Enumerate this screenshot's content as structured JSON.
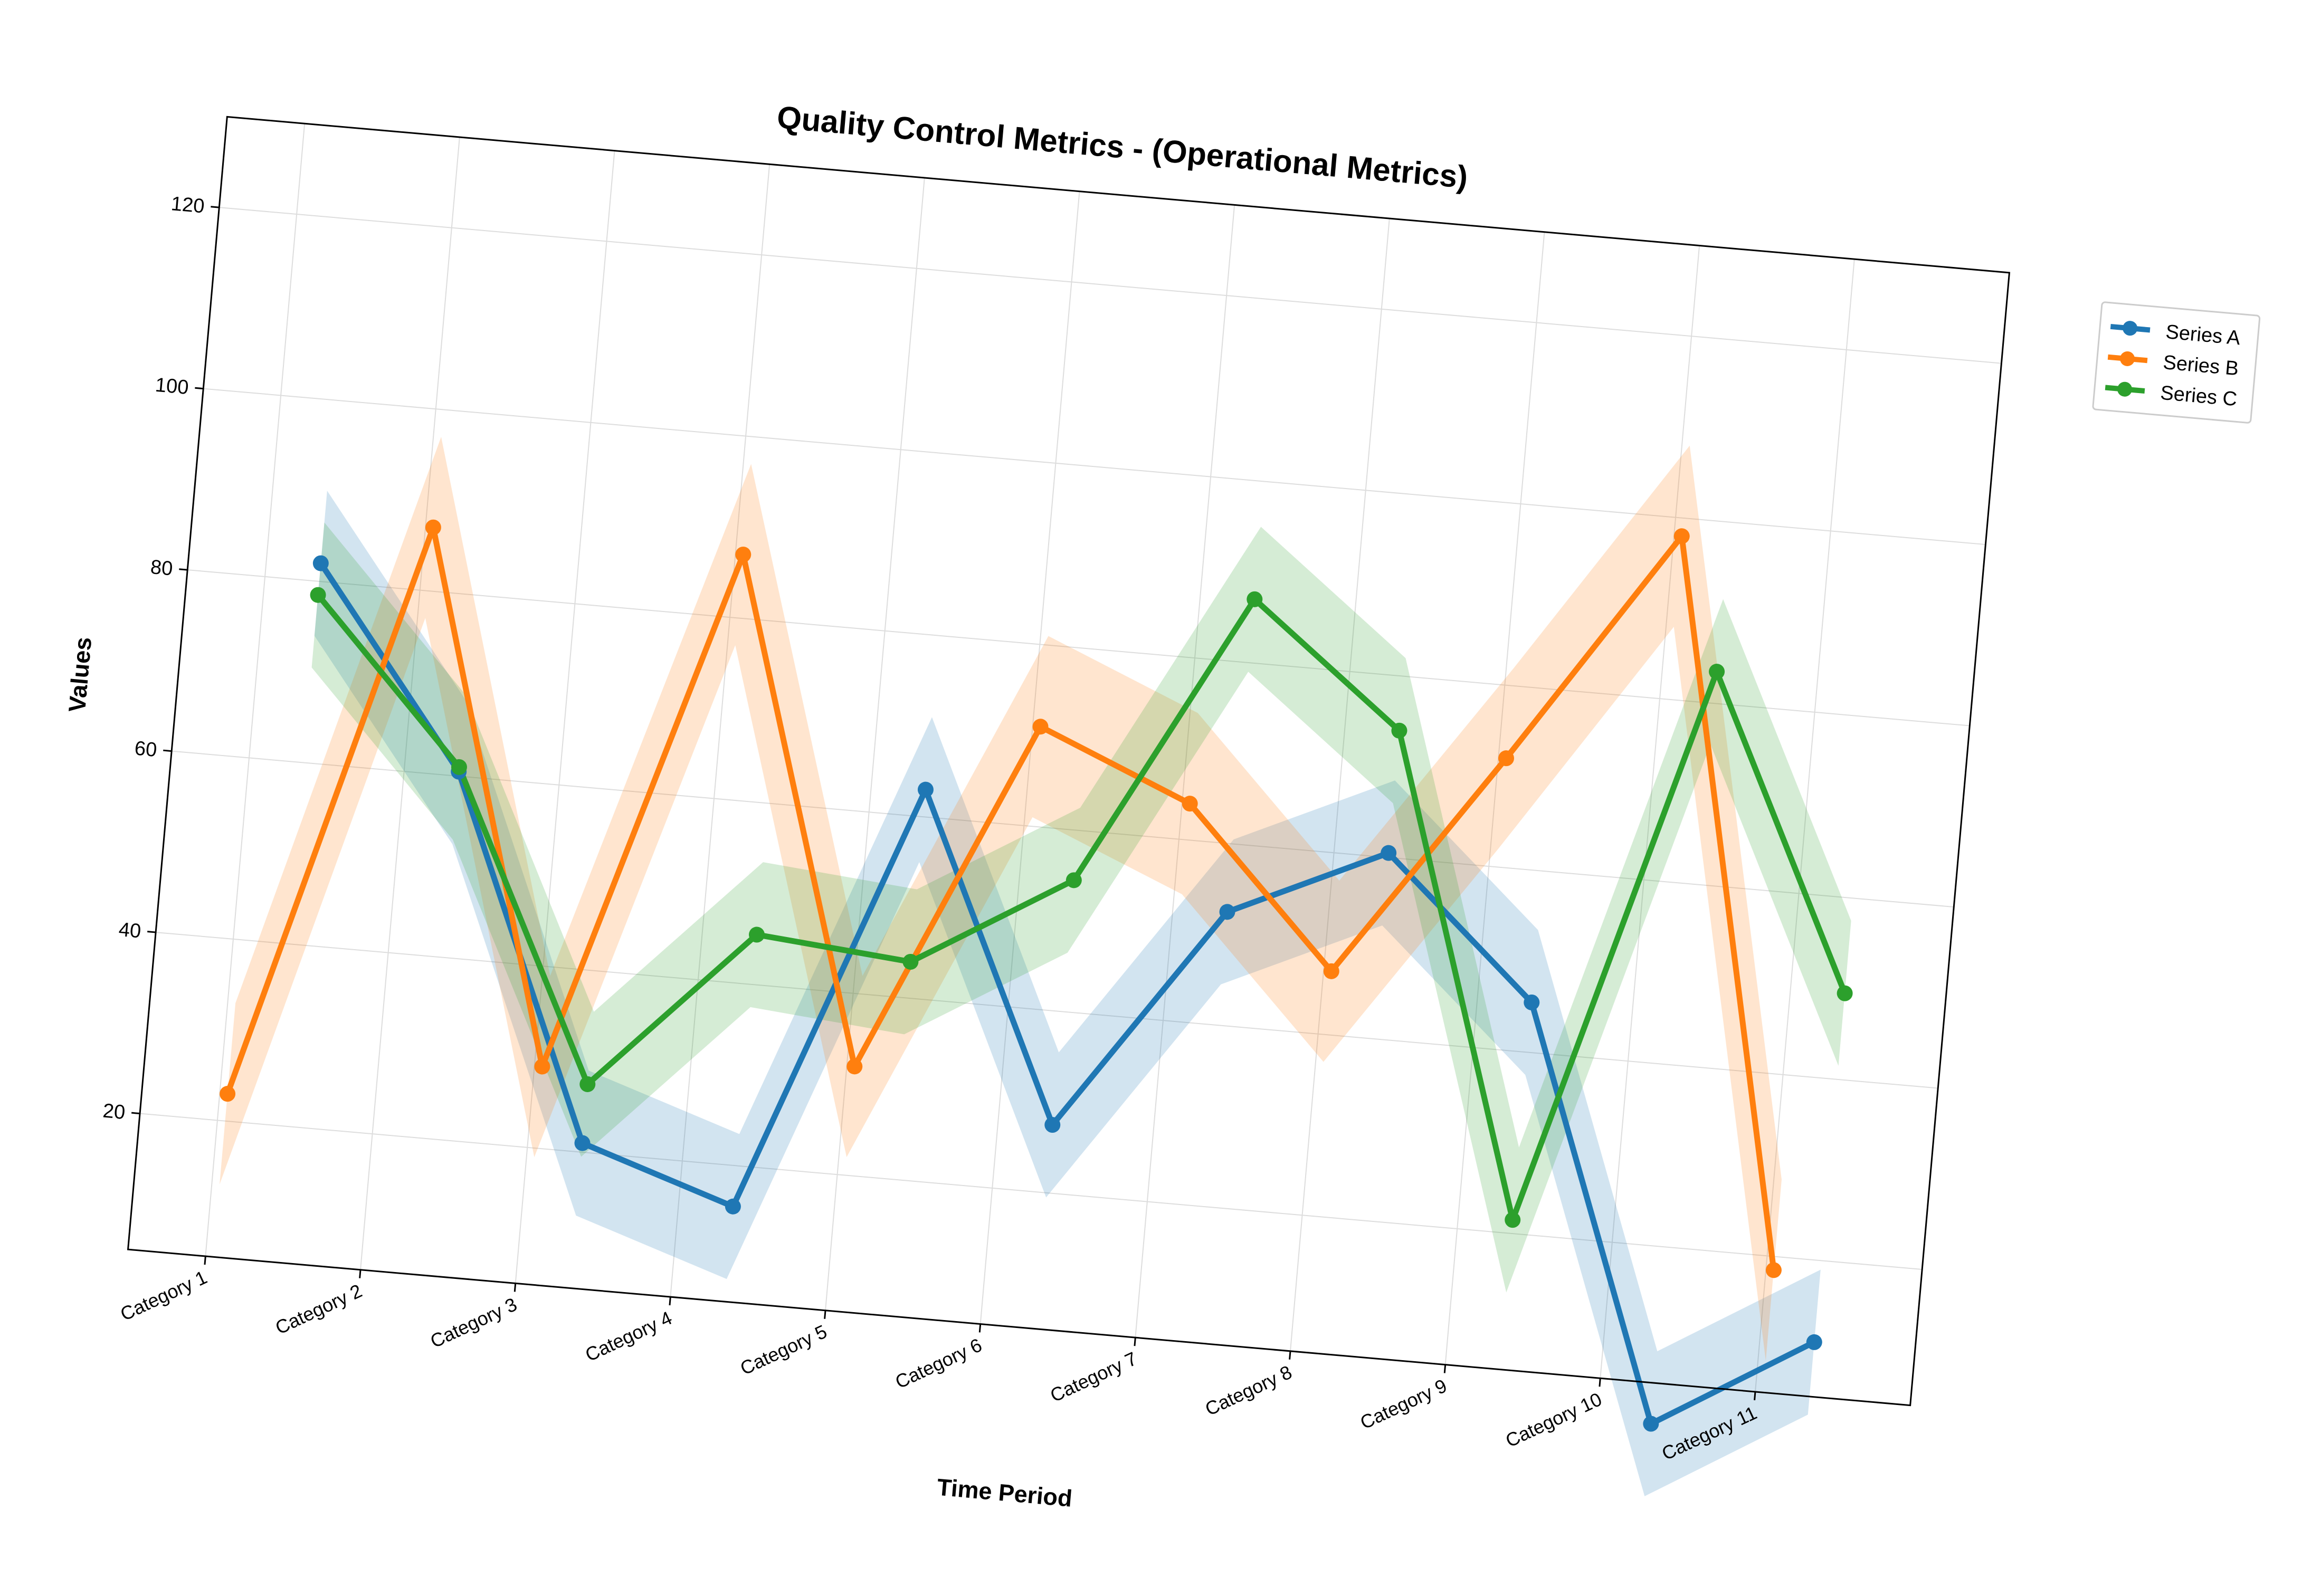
{
  "chart_data": {
    "type": "line",
    "title": "Quality Control Metrics - (Operational Metrics)",
    "xlabel": "Time Period",
    "ylabel": "Values",
    "categories": [
      "Category 1",
      "Category 2",
      "Category 3",
      "Category 4",
      "Category 5",
      "Category 6",
      "Category 7",
      "Category 8",
      "Category 9",
      "Category 10",
      "Category 11"
    ],
    "y_ticks": [
      20,
      40,
      60,
      80,
      100,
      120
    ],
    "ylim": [
      5,
      130
    ],
    "grid": true,
    "legend_position": "upper-right outside",
    "rotation_deg": 5,
    "series": [
      {
        "name": "Series A",
        "color": "#1f77b4",
        "x_offset": 0.35,
        "values": [
          82,
          60.5,
          21,
          15.5,
          63,
          27.5,
          52.5,
          60.5,
          45.5,
          0.5,
          11
        ],
        "band": 8
      },
      {
        "name": "Series B",
        "color": "#ff7f0e",
        "x_offset": 0.05,
        "values": [
          23,
          87,
          29,
          87,
          32,
          71,
          64,
          47,
          72,
          98,
          18.5
        ],
        "band": 10
      },
      {
        "name": "Series C",
        "color": "#2ca02c",
        "x_offset": 0.35,
        "values": [
          78.5,
          61,
          27.5,
          45.5,
          44,
          54.5,
          87,
          74,
          21.5,
          83.5,
          49.5
        ],
        "band": 8
      }
    ]
  }
}
